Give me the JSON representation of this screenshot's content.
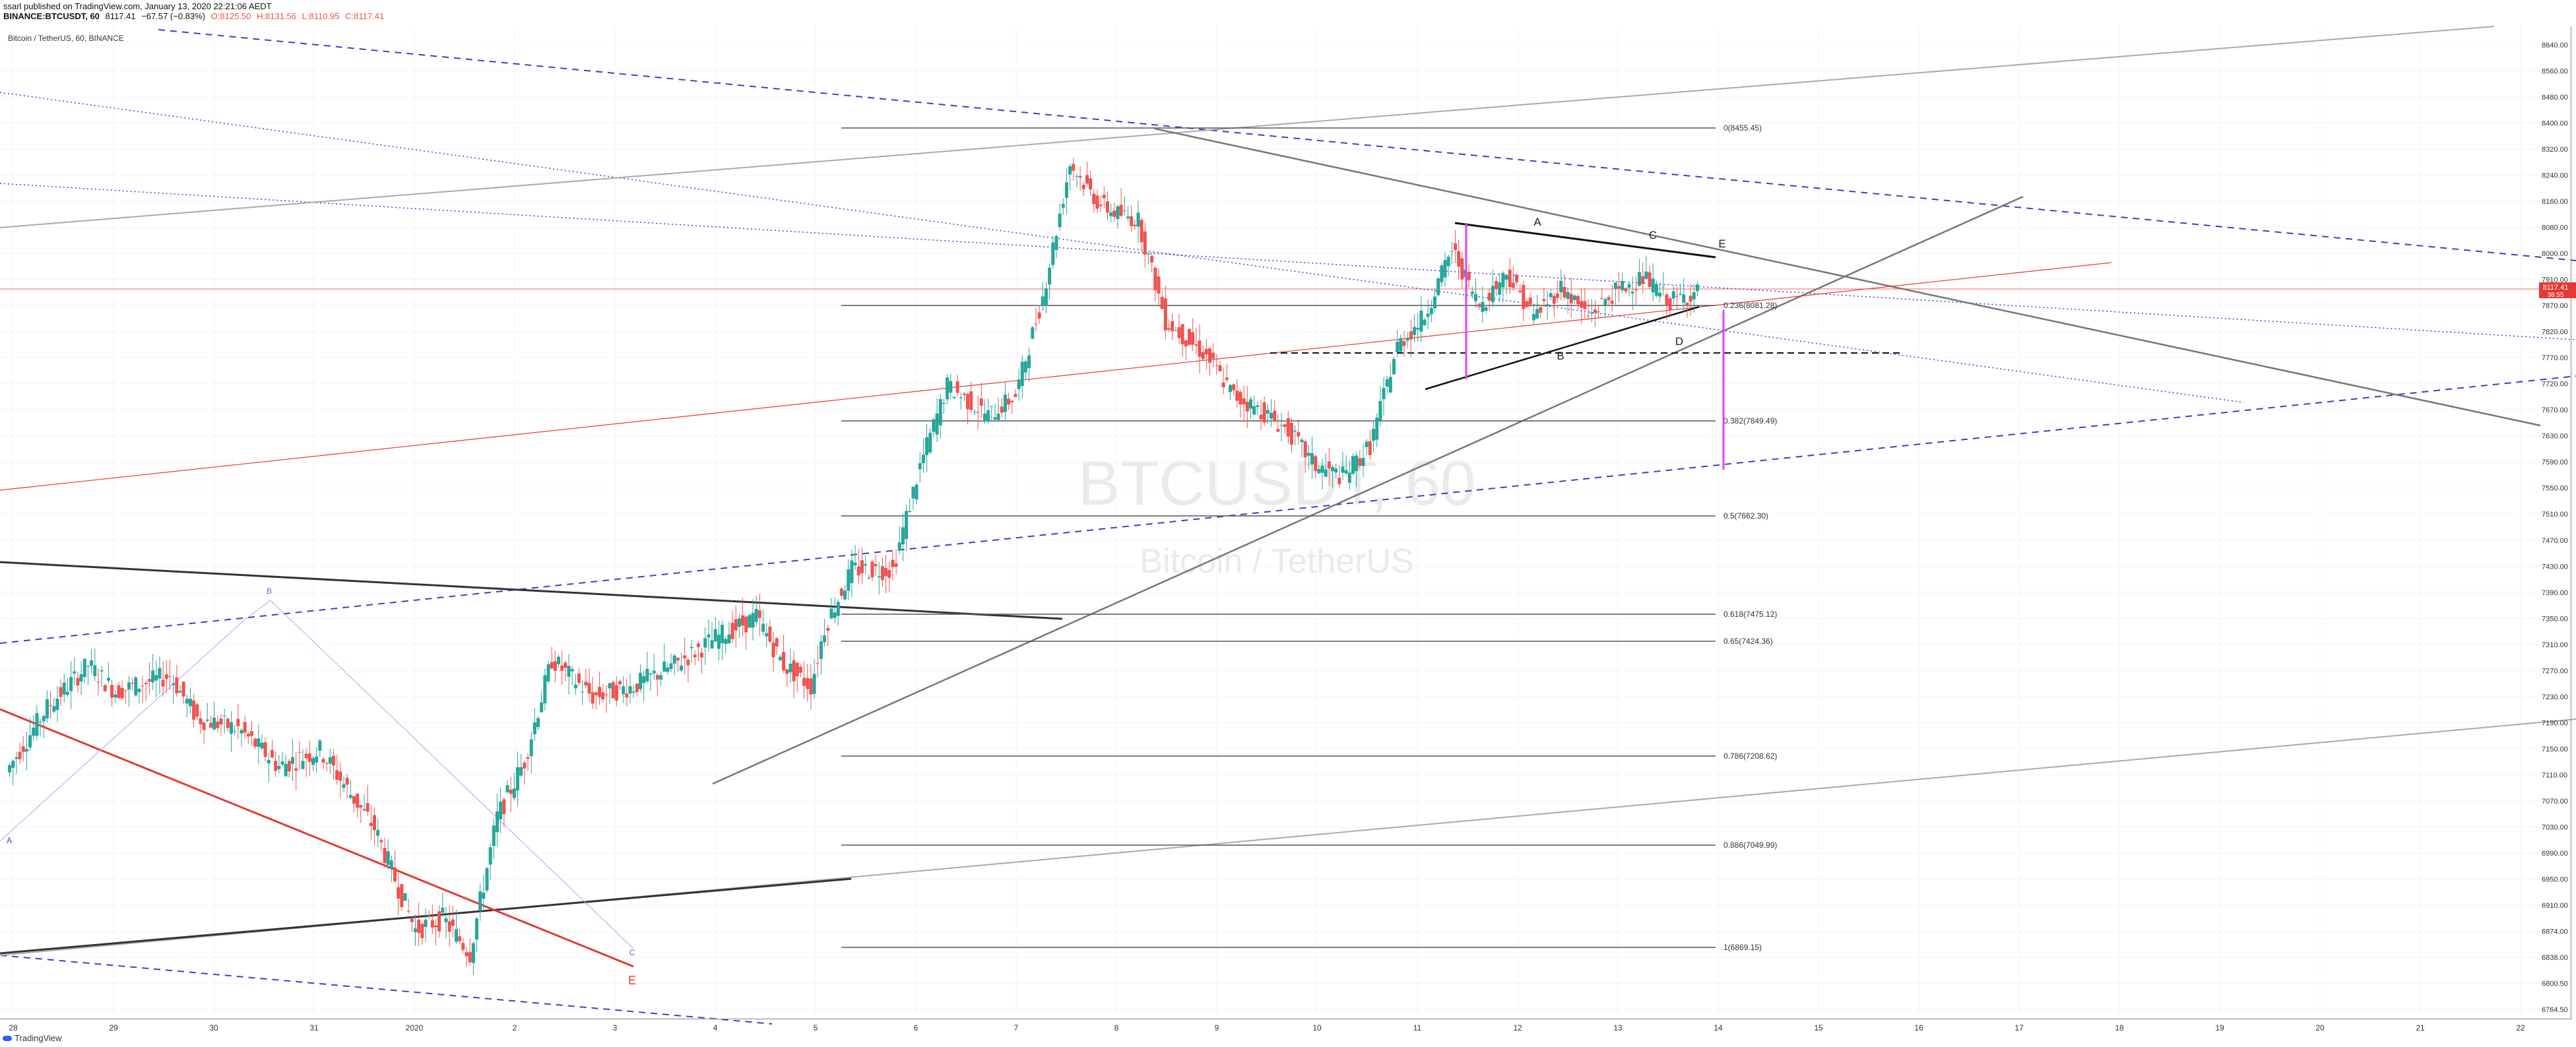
{
  "header": {
    "published": "ssarl published on TradingView.com, January 13, 2020 22:21:06 AEDT",
    "symbol": "BINANCE:BTCUSDT, 60",
    "last": "8117.41",
    "change": "−67.57 (−0.83%)",
    "open": "O:8125.50",
    "high": "H:8131.56",
    "low": "L:8110.95",
    "close": "C:8117.41",
    "legend": "Bitcoin / TetherUS, 60, BINANCE"
  },
  "watermark": {
    "symbol": "BTCUSDT, 60",
    "name": "Bitcoin / TetherUS"
  },
  "footer": {
    "brand": "TradingView"
  },
  "colors": {
    "up": "#26a69a",
    "down": "#ef5350",
    "blue_channel": "#3d3dcc",
    "red_line": "#e53935",
    "fib": "#555555",
    "magenta": "#e040fb"
  },
  "chart_data": {
    "type": "candlestick",
    "symbol": "BTCUSDT",
    "interval": "60",
    "last_price": "8117.41",
    "countdown": "38:55",
    "price_axis": {
      "ticks": [
        "8640.00",
        "8560.00",
        "8480.00",
        "8400.00",
        "8320.00",
        "8240.00",
        "8160.00",
        "8080.00",
        "8000.00",
        "7910.00",
        "7870.00",
        "7820.00",
        "7770.00",
        "7720.00",
        "7670.00",
        "7630.00",
        "7590.00",
        "7550.00",
        "7510.00",
        "7470.00",
        "7430.00",
        "7390.00",
        "7350.00",
        "7310.00",
        "7270.00",
        "7230.00",
        "7190.00",
        "7150.00",
        "7110.00",
        "7070.00",
        "7030.00",
        "6990.00",
        "6950.00",
        "6910.00",
        "6874.00",
        "6838.00",
        "6800.50",
        "6764.50"
      ],
      "range": [
        6764.5,
        8640
      ]
    },
    "time_axis": {
      "ticks": [
        "28",
        "29",
        "30",
        "31",
        "2020",
        "2",
        "3",
        "4",
        "5",
        "6",
        "7",
        "8",
        "9",
        "10",
        "11",
        "12",
        "13",
        "14",
        "15",
        "16",
        "17",
        "18",
        "19",
        "20",
        "21",
        "22"
      ]
    },
    "fibonacci": [
      {
        "label": "0(8455.45)",
        "price": 8455.45
      },
      {
        "label": "0.236(8081.28)",
        "price": 8081.28
      },
      {
        "label": "0.382(7849.49)",
        "price": 7849.49
      },
      {
        "label": "0.5(7662.30)",
        "price": 7662.3
      },
      {
        "label": "0.618(7475.12)",
        "price": 7475.12
      },
      {
        "label": "0.65(7424.36)",
        "price": 7424.36
      },
      {
        "label": "0.786(7208.62)",
        "price": 7208.62
      },
      {
        "label": "0.886(7049.99)",
        "price": 7049.99
      },
      {
        "label": "1(6869.15)",
        "price": 6869.15
      }
    ],
    "wave_labels_triangle": [
      "A",
      "B",
      "C",
      "D",
      "E"
    ],
    "wave_labels_abc": [
      "A",
      "B",
      "C"
    ],
    "wave_label_red": "E",
    "anchors": [
      [
        0,
        7180
      ],
      [
        3,
        7300
      ],
      [
        6,
        7380
      ],
      [
        8,
        7330
      ],
      [
        12,
        7360
      ],
      [
        14,
        7280
      ],
      [
        17,
        7260
      ],
      [
        20,
        7190
      ],
      [
        23,
        7220
      ],
      [
        27,
        7080
      ],
      [
        30,
        6900
      ],
      [
        32,
        6920
      ],
      [
        34,
        6860
      ],
      [
        36,
        7100
      ],
      [
        38,
        7200
      ],
      [
        40,
        7390
      ],
      [
        43,
        7320
      ],
      [
        46,
        7340
      ],
      [
        49,
        7380
      ],
      [
        52,
        7430
      ],
      [
        55,
        7470
      ],
      [
        57,
        7380
      ],
      [
        59,
        7340
      ],
      [
        60,
        7450
      ],
      [
        62,
        7560
      ],
      [
        65,
        7560
      ],
      [
        67,
        7760
      ],
      [
        69,
        7920
      ],
      [
        72,
        7860
      ],
      [
        74,
        7900
      ],
      [
        76,
        8100
      ],
      [
        78,
        8380
      ],
      [
        80,
        8300
      ],
      [
        81,
        8280
      ],
      [
        83,
        8260
      ],
      [
        85,
        8050
      ],
      [
        88,
        7980
      ],
      [
        90,
        7900
      ],
      [
        92,
        7870
      ],
      [
        94,
        7830
      ],
      [
        96,
        7760
      ],
      [
        98,
        7740
      ],
      [
        100,
        7800
      ],
      [
        102,
        8000
      ],
      [
        104,
        8060
      ],
      [
        106,
        8200
      ],
      [
        108,
        8080
      ],
      [
        110,
        8150
      ],
      [
        112,
        8060
      ],
      [
        114,
        8120
      ],
      [
        116,
        8060
      ],
      [
        118,
        8110
      ],
      [
        120,
        8140
      ],
      [
        122,
        8090
      ],
      [
        124,
        8110
      ]
    ],
    "grid": true
  }
}
